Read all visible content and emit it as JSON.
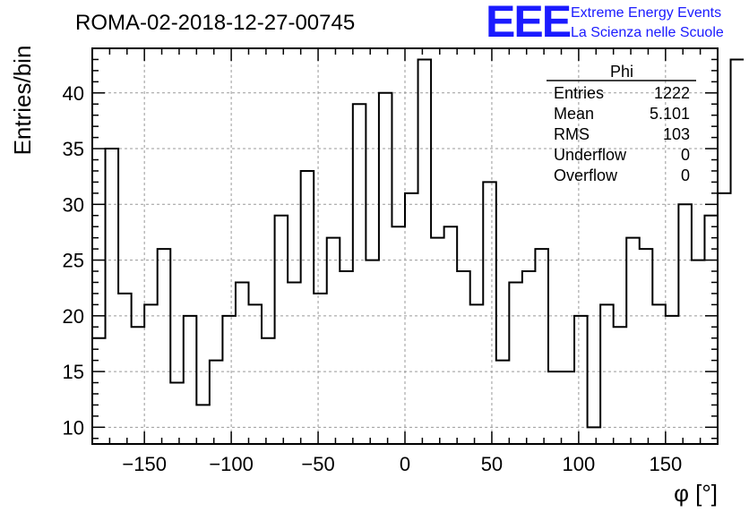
{
  "header": {
    "title": "ROMA-02-2018-12-27-00745",
    "logo": "EEE",
    "logo_line1": "Extreme Energy Events",
    "logo_line2": "La Scienza nelle Scuole"
  },
  "stats": {
    "name": "Phi",
    "rows": [
      {
        "label": "Entries",
        "value": "1222"
      },
      {
        "label": "Mean",
        "value": "5.101"
      },
      {
        "label": "RMS",
        "value": "103"
      },
      {
        "label": "Underflow",
        "value": "0"
      },
      {
        "label": "Overflow",
        "value": "0"
      }
    ]
  },
  "chart_data": {
    "type": "bar",
    "style": "step-histogram",
    "title": "ROMA-02-2018-12-27-00745",
    "xlabel": "φ [°]",
    "ylabel": "Entries/bin",
    "xlim": [
      -180,
      180
    ],
    "ylim": [
      8.5,
      44
    ],
    "bin_width": 7.5,
    "x_ticks": [
      -150,
      -100,
      -50,
      0,
      50,
      100,
      150
    ],
    "x_tick_labels": [
      "−150",
      "−100",
      "−50",
      "0",
      "50",
      "100",
      "150"
    ],
    "y_ticks": [
      10,
      15,
      20,
      25,
      30,
      35,
      40
    ],
    "y_tick_labels": [
      "10",
      "15",
      "20",
      "25",
      "30",
      "35",
      "40"
    ],
    "grid": true,
    "color": "#000000",
    "values": [
      18,
      35,
      22,
      19,
      21,
      26,
      14,
      20,
      12,
      16,
      20,
      23,
      21,
      18,
      29,
      23,
      33,
      22,
      27,
      24,
      39,
      25,
      40,
      28,
      31,
      43,
      27,
      28,
      24,
      21,
      32,
      16,
      23,
      24,
      26,
      15,
      15,
      20,
      10,
      21,
      19,
      27,
      26,
      21,
      20,
      30,
      25,
      29,
      31,
      43
    ]
  }
}
